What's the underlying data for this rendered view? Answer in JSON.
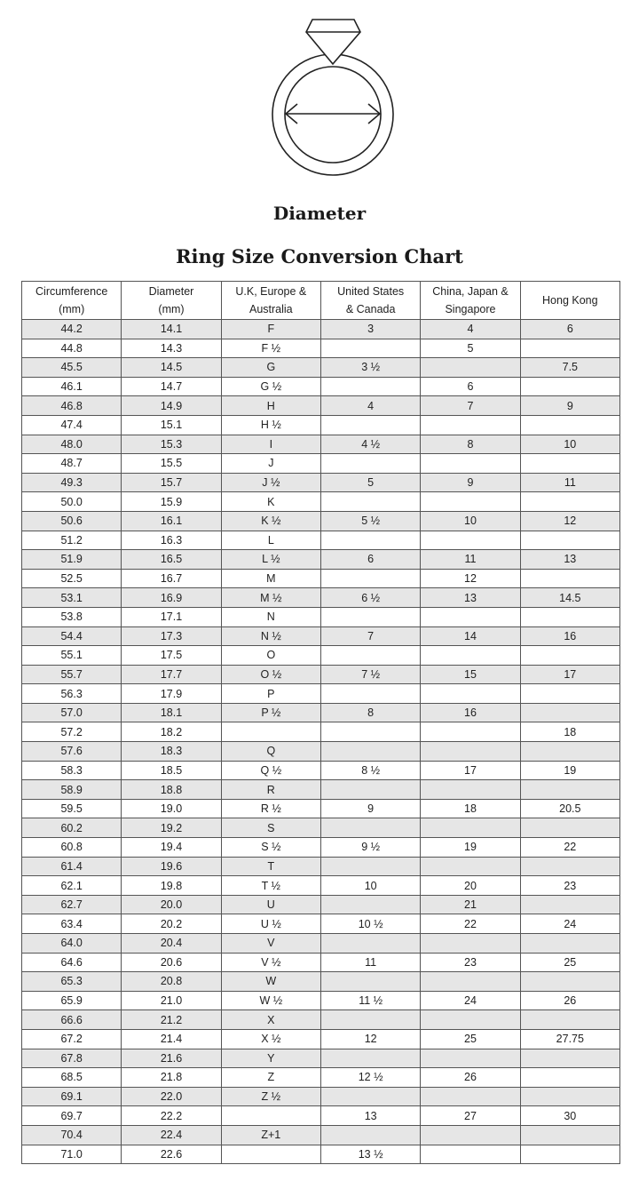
{
  "illustration": {
    "icon": "ring-diameter-icon"
  },
  "diameter_label": "Diameter",
  "title": "Ring Size Conversion Chart",
  "table": {
    "headers": [
      "Circumference\n(mm)",
      "Diameter\n(mm)",
      "U.K, Europe &\nAustralia",
      "United States\n& Canada",
      "China, Japan &\nSingapore",
      "Hong Kong"
    ],
    "rows": [
      [
        "44.2",
        "14.1",
        "F",
        "3",
        "4",
        "6"
      ],
      [
        "44.8",
        "14.3",
        "F ½",
        "",
        "5",
        ""
      ],
      [
        "45.5",
        "14.5",
        "G",
        "3 ½",
        "",
        "7.5"
      ],
      [
        "46.1",
        "14.7",
        "G ½",
        "",
        "6",
        ""
      ],
      [
        "46.8",
        "14.9",
        "H",
        "4",
        "7",
        "9"
      ],
      [
        "47.4",
        "15.1",
        "H ½",
        "",
        "",
        ""
      ],
      [
        "48.0",
        "15.3",
        "I",
        "4 ½",
        "8",
        "10"
      ],
      [
        "48.7",
        "15.5",
        "J",
        "",
        "",
        ""
      ],
      [
        "49.3",
        "15.7",
        "J ½",
        "5",
        "9",
        "11"
      ],
      [
        "50.0",
        "15.9",
        "K",
        "",
        "",
        ""
      ],
      [
        "50.6",
        "16.1",
        "K ½",
        "5 ½",
        "10",
        "12"
      ],
      [
        "51.2",
        "16.3",
        "L",
        "",
        "",
        ""
      ],
      [
        "51.9",
        "16.5",
        "L ½",
        "6",
        "11",
        "13"
      ],
      [
        "52.5",
        "16.7",
        "M",
        "",
        "12",
        ""
      ],
      [
        "53.1",
        "16.9",
        "M ½",
        "6 ½",
        "13",
        "14.5"
      ],
      [
        "53.8",
        "17.1",
        "N",
        "",
        "",
        ""
      ],
      [
        "54.4",
        "17.3",
        "N ½",
        "7",
        "14",
        "16"
      ],
      [
        "55.1",
        "17.5",
        "O",
        "",
        "",
        ""
      ],
      [
        "55.7",
        "17.7",
        "O ½",
        "7 ½",
        "15",
        "17"
      ],
      [
        "56.3",
        "17.9",
        "P",
        "",
        "",
        ""
      ],
      [
        "57.0",
        "18.1",
        "P ½",
        "8",
        "16",
        ""
      ],
      [
        "57.2",
        "18.2",
        "",
        "",
        "",
        "18"
      ],
      [
        "57.6",
        "18.3",
        "Q",
        "",
        "",
        ""
      ],
      [
        "58.3",
        "18.5",
        "Q ½",
        "8 ½",
        "17",
        "19"
      ],
      [
        "58.9",
        "18.8",
        "R",
        "",
        "",
        ""
      ],
      [
        "59.5",
        "19.0",
        "R ½",
        "9",
        "18",
        "20.5"
      ],
      [
        "60.2",
        "19.2",
        "S",
        "",
        "",
        ""
      ],
      [
        "60.8",
        "19.4",
        "S ½",
        "9 ½",
        "19",
        "22"
      ],
      [
        "61.4",
        "19.6",
        "T",
        "",
        "",
        ""
      ],
      [
        "62.1",
        "19.8",
        "T ½",
        "10",
        "20",
        "23"
      ],
      [
        "62.7",
        "20.0",
        "U",
        "",
        "21",
        ""
      ],
      [
        "63.4",
        "20.2",
        "U ½",
        "10 ½",
        "22",
        "24"
      ],
      [
        "64.0",
        "20.4",
        "V",
        "",
        "",
        ""
      ],
      [
        "64.6",
        "20.6",
        "V ½",
        "11",
        "23",
        "25"
      ],
      [
        "65.3",
        "20.8",
        "W",
        "",
        "",
        ""
      ],
      [
        "65.9",
        "21.0",
        "W ½",
        "11 ½",
        "24",
        "26"
      ],
      [
        "66.6",
        "21.2",
        "X",
        "",
        "",
        ""
      ],
      [
        "67.2",
        "21.4",
        "X ½",
        "12",
        "25",
        "27.75"
      ],
      [
        "67.8",
        "21.6",
        "Y",
        "",
        "",
        ""
      ],
      [
        "68.5",
        "21.8",
        "Z",
        "12 ½",
        "26",
        ""
      ],
      [
        "69.1",
        "22.0",
        "Z ½",
        "",
        "",
        ""
      ],
      [
        "69.7",
        "22.2",
        "",
        "13",
        "27",
        "30"
      ],
      [
        "70.4",
        "22.4",
        "Z+1",
        "",
        "",
        ""
      ],
      [
        "71.0",
        "22.6",
        "",
        "13 ½",
        "",
        ""
      ]
    ],
    "shade_color": "#e6e6e6"
  }
}
